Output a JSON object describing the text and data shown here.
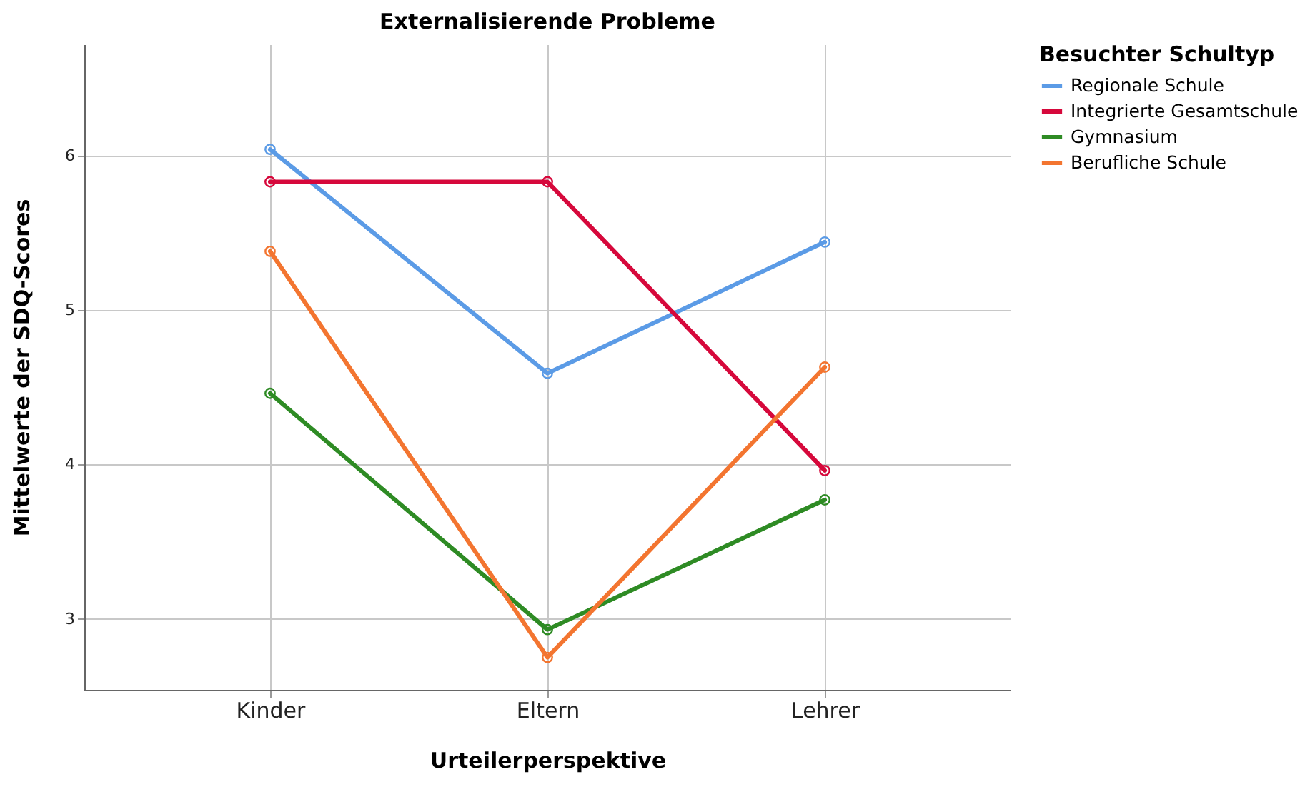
{
  "chart_data": {
    "type": "line",
    "title": "Externalisierende Probleme",
    "xlabel": "Urteilerperspektive",
    "ylabel": "Mittelwerte der SDQ-Scores",
    "legend_title": "Besuchter Schultyp",
    "categories": [
      "Kinder",
      "Eltern",
      "Lehrer"
    ],
    "series": [
      {
        "name": "Regionale Schule",
        "color": "#5b9be6",
        "values": [
          6.04,
          4.59,
          5.44
        ]
      },
      {
        "name": "Integrierte Gesamtschule",
        "color": "#d6083b",
        "values": [
          5.83,
          5.83,
          3.96
        ]
      },
      {
        "name": "Gymnasium",
        "color": "#2e8b24",
        "values": [
          4.46,
          2.93,
          3.77
        ]
      },
      {
        "name": "Berufliche Schule",
        "color": "#f37530",
        "values": [
          5.38,
          2.75,
          4.63
        ]
      }
    ],
    "ylim": [
      2.54,
      6.72
    ],
    "yticks": [
      3,
      4,
      5,
      6
    ],
    "grid": true,
    "legend": "top right",
    "marker": "circle",
    "line_style": "solid"
  }
}
